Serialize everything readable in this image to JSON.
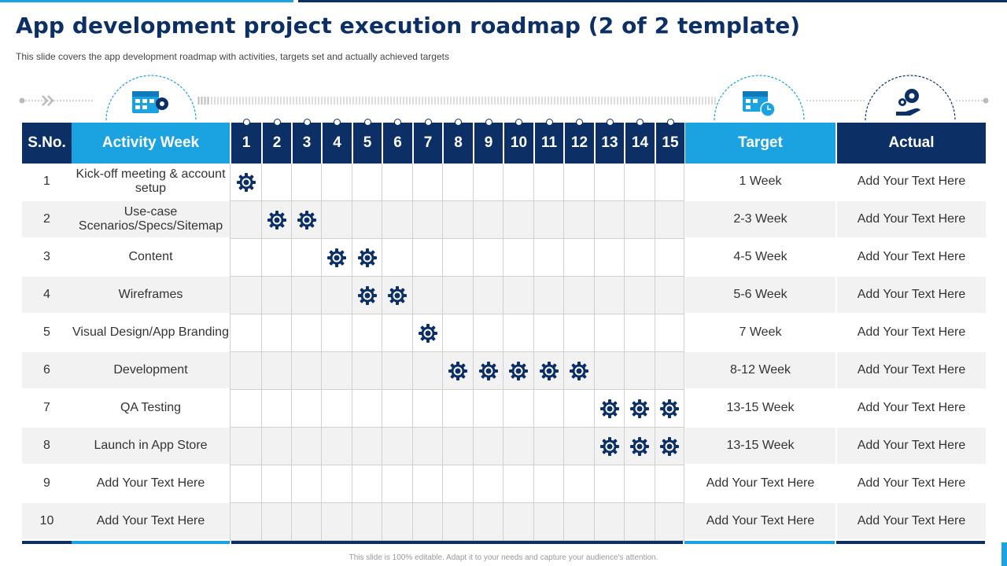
{
  "title": "App development project execution roadmap (2 of 2 template)",
  "subtitle": "This slide covers the app development  roadmap with activities, targets set and actually achieved targets",
  "footer": "This slide is 100% editable. Adapt it to your needs and capture your audience's attention.",
  "colors": {
    "dark": "#0c3066",
    "light": "#1aa3e0",
    "alt_row": "#f2f2f2"
  },
  "icons": [
    "calendar-gear-icon",
    "calendar-clock-icon",
    "hand-gears-icon",
    "gear-icon"
  ],
  "headers": {
    "sno": "S.No.",
    "activity": "Activity Week",
    "weeks": [
      "1",
      "2",
      "3",
      "4",
      "5",
      "6",
      "7",
      "8",
      "9",
      "10",
      "11",
      "12",
      "13",
      "14",
      "15"
    ],
    "target": "Target",
    "actual": "Actual"
  },
  "rows": [
    {
      "sno": "1",
      "activity": "Kick-off meeting & account setup",
      "weeks_active": [
        1
      ],
      "target": "1 Week",
      "actual": "Add Your Text Here"
    },
    {
      "sno": "2",
      "activity": "Use-case Scenarios/Specs/Sitemap",
      "weeks_active": [
        2,
        3
      ],
      "target": "2-3 Week",
      "actual": "Add Your Text Here"
    },
    {
      "sno": "3",
      "activity": "Content",
      "weeks_active": [
        4,
        5
      ],
      "target": "4-5 Week",
      "actual": "Add Your Text Here"
    },
    {
      "sno": "4",
      "activity": "Wireframes",
      "weeks_active": [
        5,
        6
      ],
      "target": "5-6 Week",
      "actual": "Add Your Text Here"
    },
    {
      "sno": "5",
      "activity": "Visual Design/App Branding",
      "weeks_active": [
        7
      ],
      "target": "7 Week",
      "actual": "Add Your Text Here"
    },
    {
      "sno": "6",
      "activity": "Development",
      "weeks_active": [
        8,
        9,
        10,
        11,
        12
      ],
      "target": "8-12 Week",
      "actual": "Add Your Text Here"
    },
    {
      "sno": "7",
      "activity": "QA Testing",
      "weeks_active": [
        13,
        14,
        15
      ],
      "target": "13-15 Week",
      "actual": "Add Your Text Here"
    },
    {
      "sno": "8",
      "activity": "Launch  in App Store",
      "weeks_active": [
        13,
        14,
        15
      ],
      "target": "13-15 Week",
      "actual": "Add Your Text Here"
    },
    {
      "sno": "9",
      "activity": "Add Your Text Here",
      "weeks_active": [],
      "target": "Add Your Text Here",
      "actual": "Add Your Text Here"
    },
    {
      "sno": "10",
      "activity": "Add Your Text Here",
      "weeks_active": [],
      "target": "Add Your Text Here",
      "actual": "Add Your Text Here"
    }
  ]
}
